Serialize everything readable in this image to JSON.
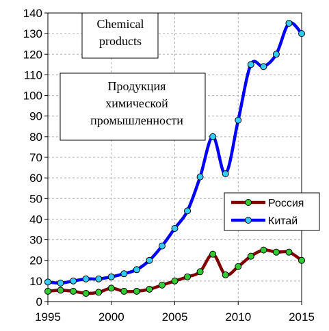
{
  "chart_data": {
    "type": "line",
    "x": [
      1995,
      1996,
      1997,
      1998,
      1999,
      2000,
      2001,
      2002,
      2003,
      2004,
      2005,
      2006,
      2007,
      2008,
      2009,
      2010,
      2011,
      2012,
      2013,
      2014,
      2015
    ],
    "series": [
      {
        "name": "Россия",
        "color": "#800000",
        "marker_color": "#33cc33",
        "values": [
          5,
          5.5,
          5,
          4,
          4.5,
          6.5,
          5,
          5,
          6,
          8,
          10,
          12,
          14.5,
          23,
          13,
          17,
          22,
          25,
          24,
          24,
          20
        ]
      },
      {
        "name": "Китай",
        "color": "#0000ff",
        "marker_color": "#33ccff",
        "values": [
          9.5,
          9,
          10,
          11,
          11,
          12,
          13.5,
          15.5,
          20,
          27,
          35.5,
          44,
          60.5,
          80,
          62,
          88,
          115,
          114,
          120,
          135,
          130
        ]
      }
    ],
    "xlim": [
      1995,
      2015
    ],
    "xticks": [
      1995,
      2000,
      2005,
      2010,
      2015
    ],
    "ylim": [
      0,
      140
    ],
    "yticks": [
      0,
      10,
      20,
      30,
      40,
      50,
      60,
      70,
      80,
      90,
      100,
      110,
      120,
      130,
      140
    ],
    "grid": true,
    "legend_position": "right",
    "annotations": [
      {
        "lines": [
          "Chemical",
          "products"
        ]
      },
      {
        "lines": [
          "Продукция",
          "химической",
          "промышленности"
        ]
      }
    ]
  }
}
